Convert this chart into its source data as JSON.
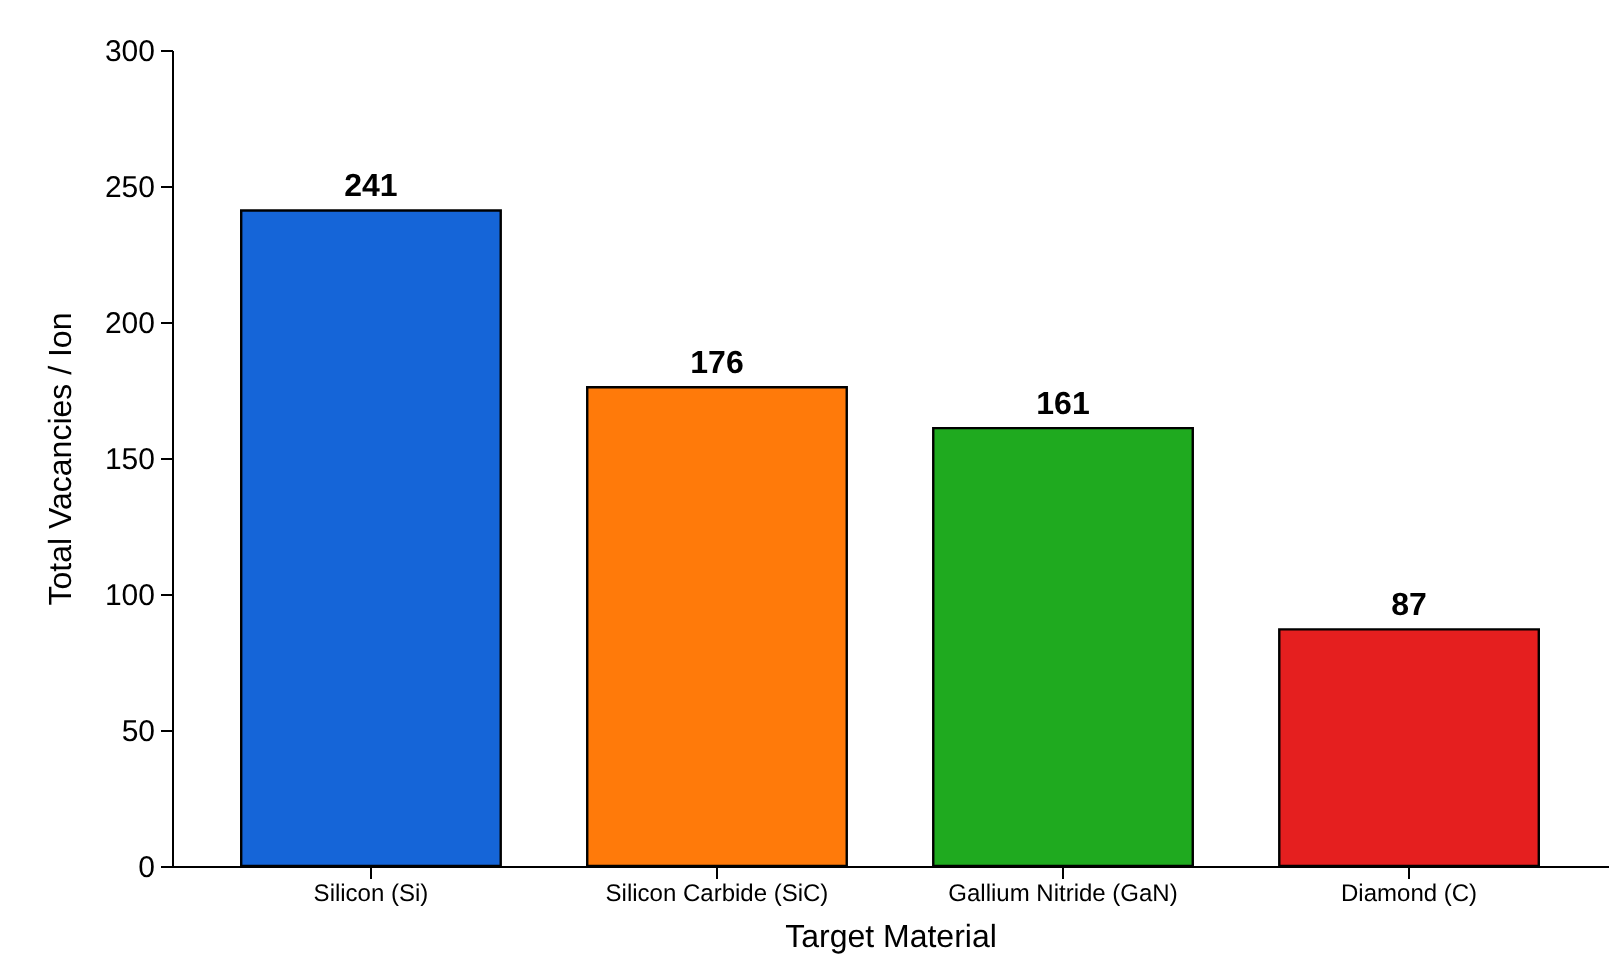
{
  "chart_data": {
    "type": "bar",
    "xlabel": "Target Material",
    "ylabel": "Total Vacancies / Ion",
    "categories": [
      "Silicon (Si)",
      "Silicon Carbide (SiC)",
      "Gallium Nitride (GaN)",
      "Diamond (C)"
    ],
    "values": [
      241,
      176,
      161,
      87
    ],
    "colors": [
      "#1565d8",
      "#ff7a0a",
      "#1faa1f",
      "#e51f1f"
    ],
    "ylim": [
      0,
      300
    ],
    "yticks": [
      0,
      50,
      100,
      150,
      200,
      250,
      300
    ],
    "data_labels": true,
    "grid": false
  }
}
